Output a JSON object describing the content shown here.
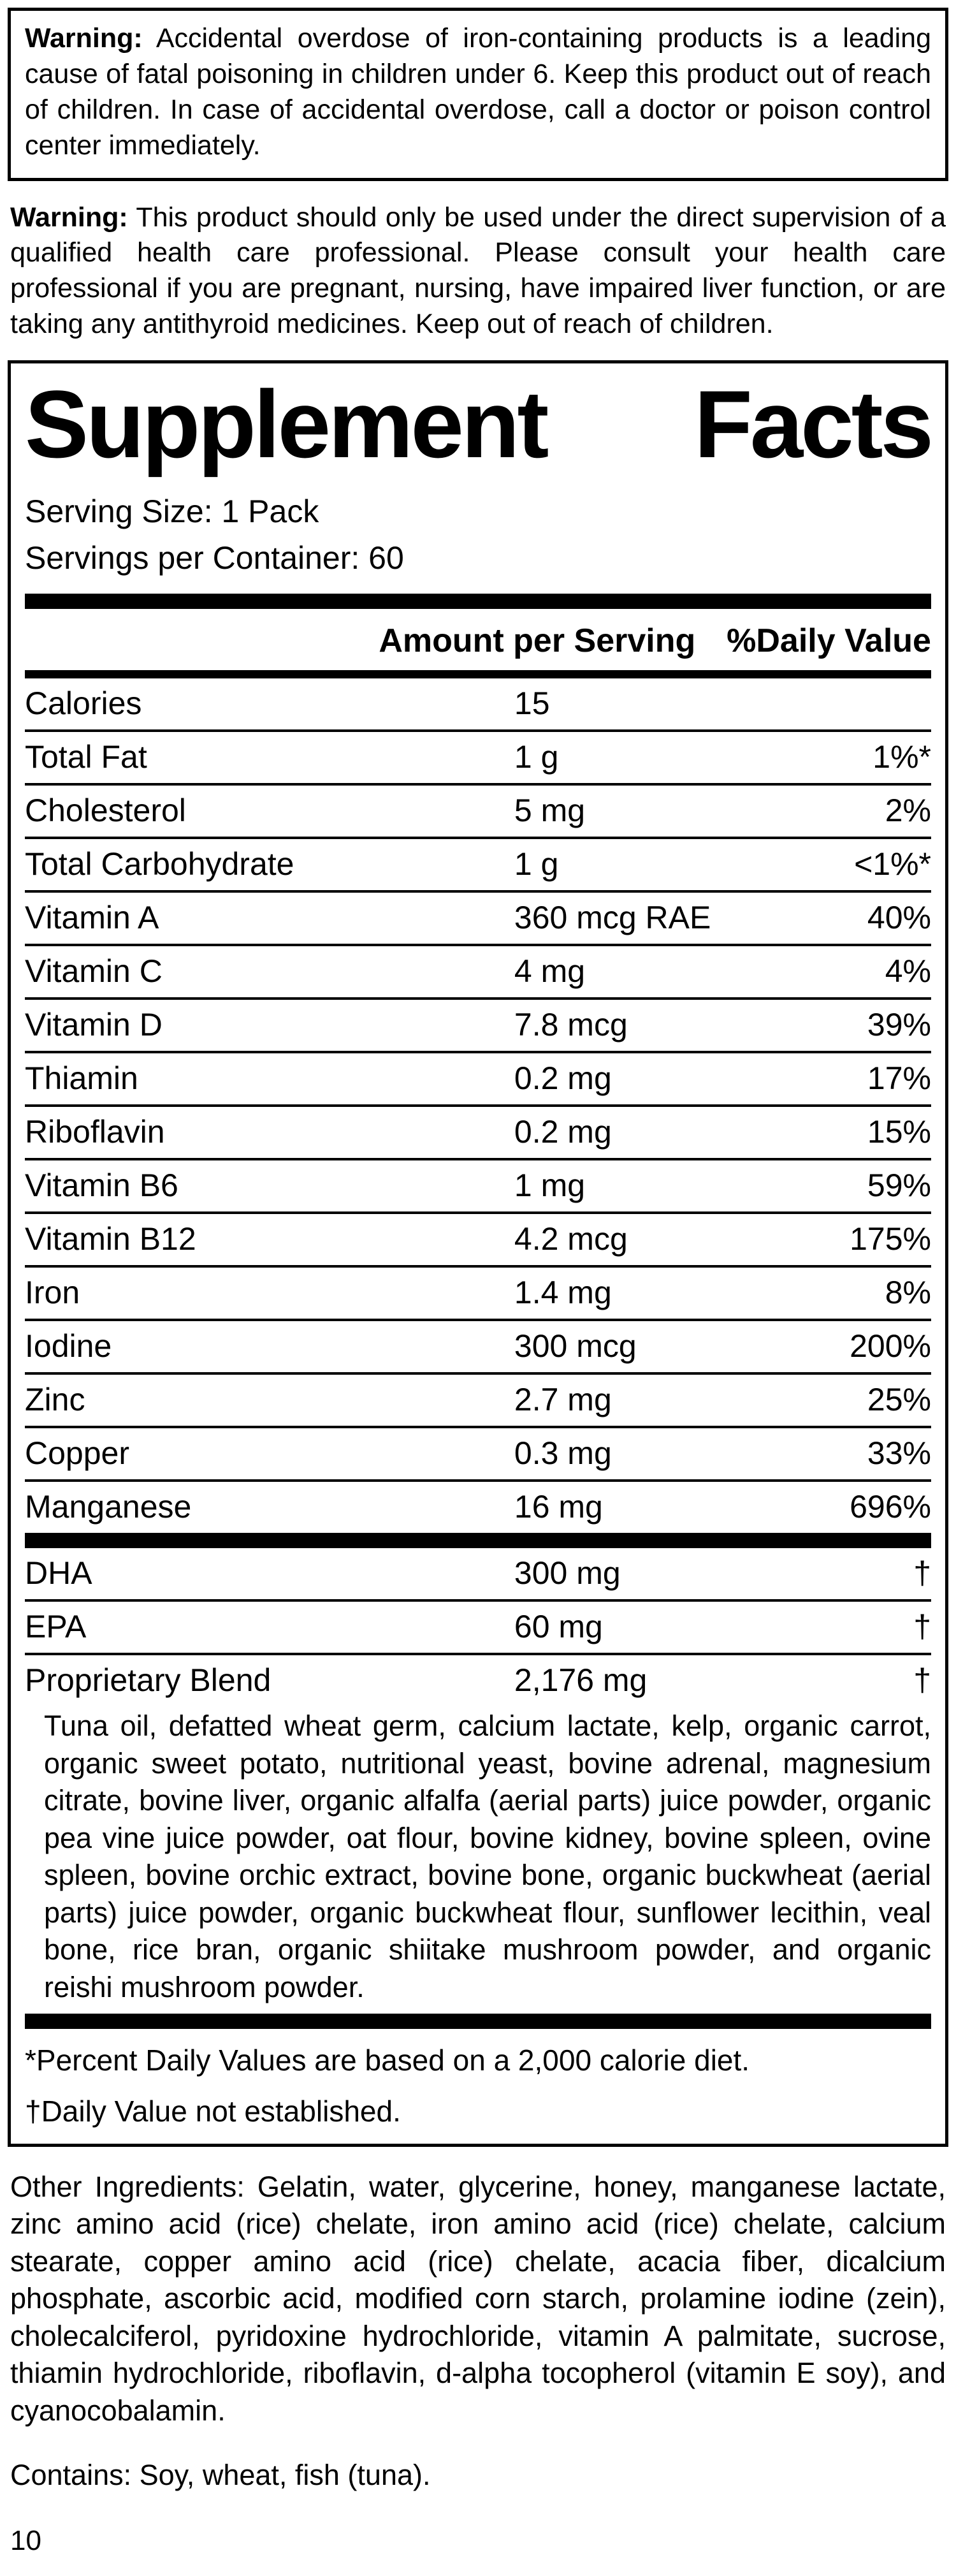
{
  "warning1": {
    "label": "Warning:",
    "text": "Accidental overdose of iron-containing products is a leading cause of fatal poisoning in children under 6. Keep this product out of reach of children. In case of accidental overdose, call a doctor or poison control center immediately."
  },
  "warning2": {
    "label": "Warning:",
    "text": "This product should only be used under the direct supervision of a qualified health care professional. Please consult your health care professional if you are pregnant, nursing, have impaired liver function, or are taking any antithyroid medicines. Keep out of reach of children."
  },
  "sf": {
    "title_word1": "Supplement",
    "title_word2": "Facts",
    "serving_size": "Serving Size: 1 Pack",
    "servings_per_container": "Servings per Container: 60",
    "col_amount": "Amount per Serving",
    "col_dv": "%Daily Value",
    "rows": [
      {
        "name": "Calories",
        "amount": "15",
        "dv": ""
      },
      {
        "name": "Total Fat",
        "amount": "1 g",
        "dv": "1%*"
      },
      {
        "name": "Cholesterol",
        "amount": "5 mg",
        "dv": "2%"
      },
      {
        "name": "Total Carbohydrate",
        "amount": "1 g",
        "dv": "<1%*"
      },
      {
        "name": "Vitamin A",
        "amount": "360 mcg RAE",
        "dv": "40%"
      },
      {
        "name": "Vitamin C",
        "amount": "4 mg",
        "dv": "4%"
      },
      {
        "name": "Vitamin D",
        "amount": "7.8 mcg",
        "dv": "39%"
      },
      {
        "name": "Thiamin",
        "amount": "0.2 mg",
        "dv": "17%"
      },
      {
        "name": "Riboflavin",
        "amount": "0.2 mg",
        "dv": "15%"
      },
      {
        "name": "Vitamin B6",
        "amount": "1 mg",
        "dv": "59%"
      },
      {
        "name": "Vitamin B12",
        "amount": "4.2 mcg",
        "dv": "175%"
      },
      {
        "name": "Iron",
        "amount": "1.4 mg",
        "dv": "8%"
      },
      {
        "name": "Iodine",
        "amount": "300 mcg",
        "dv": "200%"
      },
      {
        "name": "Zinc",
        "amount": "2.7 mg",
        "dv": "25%"
      },
      {
        "name": "Copper",
        "amount": "0.3 mg",
        "dv": "33%"
      },
      {
        "name": "Manganese",
        "amount": "16 mg",
        "dv": "696%"
      }
    ],
    "rows2": [
      {
        "name": "DHA",
        "amount": "300 mg",
        "dv": "†"
      },
      {
        "name": "EPA",
        "amount": "60 mg",
        "dv": "†"
      },
      {
        "name": "Proprietary Blend",
        "amount": "2,176 mg",
        "dv": "†"
      }
    ],
    "blend_description": "Tuna oil, defatted wheat germ, calcium lactate, kelp, organic carrot, organic sweet potato, nutritional yeast, bovine adrenal, magnesium citrate, bovine liver, organic alfalfa (aerial parts) juice powder, organic pea vine juice powder, oat flour, bovine kidney, bovine spleen, ovine spleen, bovine orchic extract, bovine bone, organic buckwheat (aerial parts) juice powder, organic buckwheat flour, sunflower lecithin, veal bone, rice bran, organic shiitake mushroom powder, and organic reishi mushroom powder.",
    "footnote_percent": "*Percent Daily Values are based on a 2,000 calorie diet.",
    "footnote_dagger": "†Daily Value not established."
  },
  "other_ingredients": "Other Ingredients: Gelatin, water, glycerine, honey, manganese lactate, zinc amino acid (rice) chelate, iron amino acid (rice) chelate, calcium stearate, copper amino acid (rice) chelate, acacia fiber, dicalcium phosphate, ascorbic acid, modified corn starch, prolamine iodine (zein), cholecalciferol, pyridoxine hydrochloride, vitamin A palmitate, sucrose, thiamin hydrochloride, riboflavin, d-alpha tocopherol (vitamin E soy), and cyanocobalamin.",
  "contains": "Contains: Soy, wheat, fish (tuna).",
  "page_number": "10"
}
